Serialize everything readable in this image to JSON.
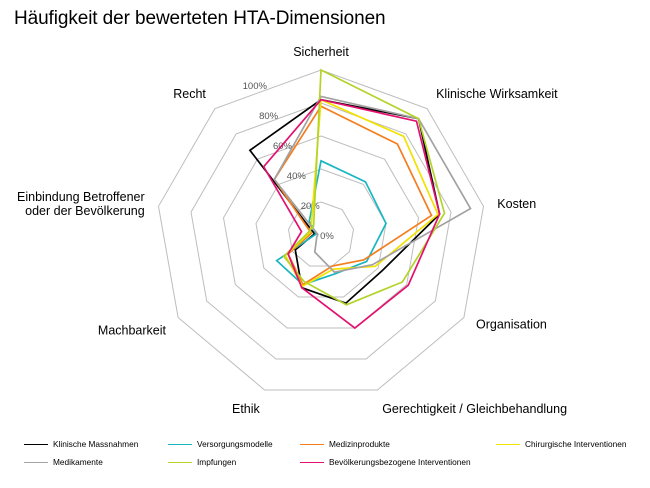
{
  "chart_data": {
    "type": "radar",
    "title": "Häufigkeit der bewerteten HTA-Dimensionen",
    "axes": [
      "Sicherheit",
      "Klinische Wirksamkeit",
      "Kosten",
      "Organisation",
      "Gerechtigkeit / Gleichbehandlung",
      "Ethik",
      "Machbarkeit",
      "Einbindung Betroffener oder der Bevölkerung",
      "Recht"
    ],
    "axes_lines": [
      [
        "Sicherheit"
      ],
      [
        "Klinische Wirksamkeit"
      ],
      [
        "Kosten"
      ],
      [
        "Organisation"
      ],
      [
        "Gerechtigkeit / Gleichbehandlung"
      ],
      [
        "Ethik"
      ],
      [
        "Machbarkeit"
      ],
      [
        "Einbindung Betroffener",
        "oder der Bevölkerung"
      ],
      [
        "Recht"
      ]
    ],
    "rlim": [
      0,
      100
    ],
    "ticks": [
      "0%",
      "20%",
      "40%",
      "60%",
      "80%",
      "100%"
    ],
    "tick_values": [
      0,
      20,
      40,
      60,
      80,
      100
    ],
    "grid": true,
    "legend_position": "bottom",
    "series": [
      {
        "name": "Klinische Massnahmen",
        "color": "#000000",
        "values": [
          82,
          92,
          73,
          43,
          44,
          34,
          18,
          4,
          67
        ]
      },
      {
        "name": "Versorgungsmodelle",
        "color": "#19b6c1",
        "values": [
          45,
          42,
          40,
          32,
          25,
          32,
          31,
          3,
          11
        ]
      },
      {
        "name": "Medizinprodukte",
        "color": "#f47e1e",
        "values": [
          78,
          72,
          68,
          30,
          20,
          32,
          23,
          6,
          44
        ]
      },
      {
        "name": "Chirurgische Interventionen",
        "color": "#f2e200",
        "values": [
          82,
          78,
          72,
          38,
          22,
          33,
          25,
          7,
          9
        ]
      },
      {
        "name": "Medikamente",
        "color": "#a2a2a2",
        "values": [
          84,
          92,
          92,
          36,
          24,
          11,
          3,
          2,
          44
        ]
      },
      {
        "name": "Impfungen",
        "color": "#b3d32a",
        "values": [
          100,
          92,
          76,
          57,
          45,
          30,
          26,
          8,
          7
        ]
      },
      {
        "name": "Bevölkerungsbezogene Interventionen",
        "color": "#e3106f",
        "values": [
          82,
          90,
          73,
          61,
          60,
          34,
          23,
          12,
          54
        ]
      }
    ]
  }
}
